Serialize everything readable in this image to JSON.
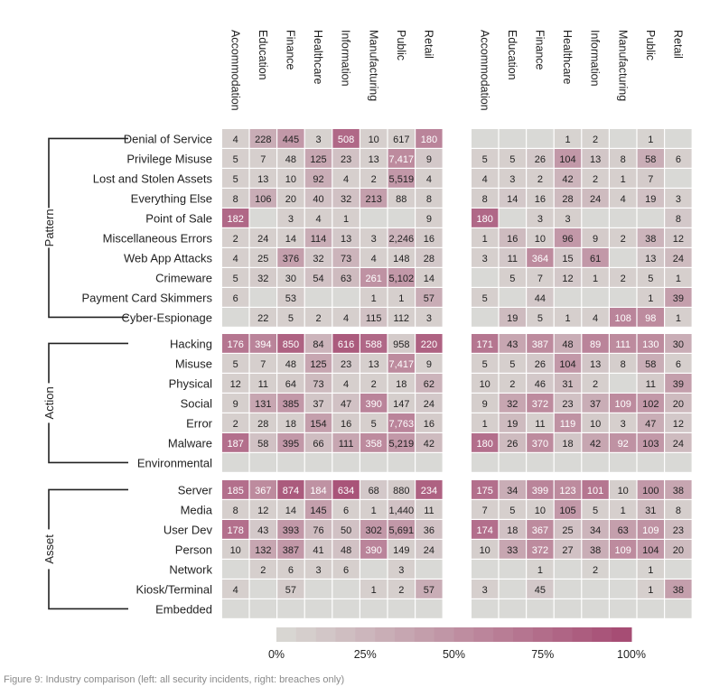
{
  "caption": "Figure 9: Industry comparison (left: all security incidents, right: breaches only)",
  "chart_data": {
    "type": "heatmap",
    "industries": [
      "Accommodation",
      "Education",
      "Finance",
      "Healthcare",
      "Information",
      "Manufacturing",
      "Public",
      "Retail"
    ],
    "groups": [
      {
        "name": "Pattern",
        "rows": [
          "Denial of Service",
          "Privilege Misuse",
          "Lost and Stolen Assets",
          "Everything Else",
          "Point of Sale",
          "Miscellaneous Errors",
          "Web App Attacks",
          "Crimeware",
          "Payment Card Skimmers",
          "Cyber-Espionage"
        ]
      },
      {
        "name": "Action",
        "rows": [
          "Hacking",
          "Misuse",
          "Physical",
          "Social",
          "Error",
          "Malware",
          "Environmental"
        ]
      },
      {
        "name": "Asset",
        "rows": [
          "Server",
          "Media",
          "User Dev",
          "Person",
          "Network",
          "Kiosk/Terminal",
          "Embedded"
        ]
      }
    ],
    "panels": [
      {
        "name": "all security incidents",
        "values": [
          [
            "4",
            "228",
            "445",
            "3",
            "508",
            "10",
            "617",
            "180"
          ],
          [
            "5",
            "7",
            "48",
            "125",
            "23",
            "13",
            "7,417",
            "9"
          ],
          [
            "5",
            "13",
            "10",
            "92",
            "4",
            "2",
            "5,519",
            "4"
          ],
          [
            "8",
            "106",
            "20",
            "40",
            "32",
            "213",
            "88",
            "8"
          ],
          [
            "182",
            "",
            "3",
            "4",
            "1",
            "",
            "",
            "9"
          ],
          [
            "2",
            "24",
            "14",
            "114",
            "13",
            "3",
            "2,246",
            "16"
          ],
          [
            "4",
            "25",
            "376",
            "32",
            "73",
            "4",
            "148",
            "28"
          ],
          [
            "5",
            "32",
            "30",
            "54",
            "63",
            "261",
            "5,102",
            "14"
          ],
          [
            "6",
            "",
            "53",
            "",
            "",
            "1",
            "1",
            "57"
          ],
          [
            "",
            "22",
            "5",
            "2",
            "4",
            "115",
            "112",
            "3"
          ],
          [
            "176",
            "394",
            "850",
            "84",
            "616",
            "588",
            "958",
            "220"
          ],
          [
            "5",
            "7",
            "48",
            "125",
            "23",
            "13",
            "7,417",
            "9"
          ],
          [
            "12",
            "11",
            "64",
            "73",
            "4",
            "2",
            "18",
            "62"
          ],
          [
            "9",
            "131",
            "385",
            "37",
            "47",
            "390",
            "147",
            "24"
          ],
          [
            "2",
            "28",
            "18",
            "154",
            "16",
            "5",
            "7,763",
            "16"
          ],
          [
            "187",
            "58",
            "395",
            "66",
            "111",
            "358",
            "5,219",
            "42"
          ],
          [
            "",
            "",
            "",
            "",
            "",
            "",
            "",
            ""
          ],
          [
            "185",
            "367",
            "874",
            "184",
            "634",
            "68",
            "880",
            "234"
          ],
          [
            "8",
            "12",
            "14",
            "145",
            "6",
            "1",
            "1,440",
            "11"
          ],
          [
            "178",
            "43",
            "393",
            "76",
            "50",
            "302",
            "5,691",
            "36"
          ],
          [
            "10",
            "132",
            "387",
            "41",
            "48",
            "390",
            "149",
            "24"
          ],
          [
            "",
            "2",
            "6",
            "3",
            "6",
            "",
            "3",
            ""
          ],
          [
            "4",
            "",
            "57",
            "",
            "",
            "1",
            "2",
            "57"
          ],
          [
            "",
            "",
            "",
            "",
            "",
            "",
            "",
            ""
          ]
        ],
        "fill": [
          [
            0.05,
            0.3,
            0.45,
            0.03,
            0.8,
            0.05,
            0.05,
            0.6
          ],
          [
            0.05,
            0.05,
            0.06,
            0.35,
            0.15,
            0.05,
            0.55,
            0.1
          ],
          [
            0.05,
            0.05,
            0.05,
            0.3,
            0.05,
            0.05,
            0.45,
            0.05
          ],
          [
            0.06,
            0.3,
            0.06,
            0.15,
            0.15,
            0.4,
            0.05,
            0.06
          ],
          [
            0.8,
            0,
            0.05,
            0.05,
            0.05,
            0,
            0,
            0.05
          ],
          [
            0.05,
            0.05,
            0.05,
            0.3,
            0.1,
            0.05,
            0.25,
            0.08
          ],
          [
            0.05,
            0.05,
            0.4,
            0.1,
            0.25,
            0.05,
            0.05,
            0.1
          ],
          [
            0.05,
            0.08,
            0.05,
            0.15,
            0.2,
            0.5,
            0.45,
            0.05
          ],
          [
            0.05,
            0,
            0.07,
            0,
            0,
            0.05,
            0.05,
            0.3
          ],
          [
            0,
            0.05,
            0.05,
            0.05,
            0.05,
            0.15,
            0.05,
            0.05
          ],
          [
            0.7,
            0.6,
            0.85,
            0.25,
            0.9,
            0.8,
            0.08,
            0.85
          ],
          [
            0.05,
            0.05,
            0.05,
            0.35,
            0.1,
            0.05,
            0.55,
            0.05
          ],
          [
            0.05,
            0.05,
            0.08,
            0.2,
            0.05,
            0.05,
            0.05,
            0.25
          ],
          [
            0.05,
            0.35,
            0.45,
            0.12,
            0.15,
            0.6,
            0.06,
            0.1
          ],
          [
            0.05,
            0.05,
            0.05,
            0.4,
            0.08,
            0.05,
            0.6,
            0.08
          ],
          [
            0.75,
            0.15,
            0.45,
            0.18,
            0.35,
            0.55,
            0.45,
            0.2
          ],
          [
            0,
            0,
            0,
            0,
            0,
            0,
            0,
            0
          ],
          [
            0.75,
            0.55,
            0.9,
            0.5,
            0.95,
            0.1,
            0.08,
            0.85
          ],
          [
            0.05,
            0.05,
            0.05,
            0.4,
            0.05,
            0.05,
            0.15,
            0.05
          ],
          [
            0.75,
            0.1,
            0.45,
            0.2,
            0.15,
            0.45,
            0.45,
            0.15
          ],
          [
            0.05,
            0.35,
            0.45,
            0.12,
            0.15,
            0.6,
            0.06,
            0.1
          ],
          [
            0,
            0.05,
            0.05,
            0.05,
            0.05,
            0,
            0.05,
            0
          ],
          [
            0.05,
            0,
            0.08,
            0,
            0,
            0.05,
            0.05,
            0.3
          ],
          [
            0,
            0,
            0,
            0,
            0,
            0,
            0,
            0
          ]
        ]
      },
      {
        "name": "breaches only",
        "values": [
          [
            "",
            "",
            "",
            "1",
            "2",
            "",
            "1",
            ""
          ],
          [
            "5",
            "5",
            "26",
            "104",
            "13",
            "8",
            "58",
            "6"
          ],
          [
            "4",
            "3",
            "2",
            "42",
            "2",
            "1",
            "7",
            ""
          ],
          [
            "8",
            "14",
            "16",
            "28",
            "24",
            "4",
            "19",
            "3"
          ],
          [
            "180",
            "",
            "3",
            "3",
            "",
            "",
            "",
            "8"
          ],
          [
            "1",
            "16",
            "10",
            "96",
            "9",
            "2",
            "38",
            "12"
          ],
          [
            "3",
            "11",
            "364",
            "15",
            "61",
            "",
            "13",
            "24"
          ],
          [
            "",
            "5",
            "7",
            "12",
            "1",
            "2",
            "5",
            "1"
          ],
          [
            "5",
            "",
            "44",
            "",
            "",
            "",
            "1",
            "39"
          ],
          [
            "",
            "19",
            "5",
            "1",
            "4",
            "108",
            "98",
            "1"
          ],
          [
            "171",
            "43",
            "387",
            "48",
            "89",
            "111",
            "130",
            "30"
          ],
          [
            "5",
            "5",
            "26",
            "104",
            "13",
            "8",
            "58",
            "6"
          ],
          [
            "10",
            "2",
            "46",
            "31",
            "2",
            "",
            "11",
            "39"
          ],
          [
            "9",
            "32",
            "372",
            "23",
            "37",
            "109",
            "102",
            "20"
          ],
          [
            "1",
            "19",
            "11",
            "119",
            "10",
            "3",
            "47",
            "12"
          ],
          [
            "180",
            "26",
            "370",
            "18",
            "42",
            "92",
            "103",
            "24"
          ],
          [
            "",
            "",
            "",
            "",
            "",
            "",
            "",
            ""
          ],
          [
            "175",
            "34",
            "399",
            "123",
            "101",
            "10",
            "100",
            "38"
          ],
          [
            "7",
            "5",
            "10",
            "105",
            "5",
            "1",
            "31",
            "8"
          ],
          [
            "174",
            "18",
            "367",
            "25",
            "34",
            "63",
            "109",
            "23"
          ],
          [
            "10",
            "33",
            "372",
            "27",
            "38",
            "109",
            "104",
            "20"
          ],
          [
            "",
            "",
            "1",
            "",
            "2",
            "",
            "1",
            ""
          ],
          [
            "3",
            "",
            "45",
            "",
            "",
            "",
            "1",
            "38"
          ],
          [
            "",
            "",
            "",
            "",
            "",
            "",
            "",
            ""
          ]
        ],
        "fill": [
          [
            0,
            0,
            0,
            0.02,
            0.02,
            0,
            0.02,
            0
          ],
          [
            0.05,
            0.05,
            0.1,
            0.45,
            0.12,
            0.06,
            0.3,
            0.05
          ],
          [
            0.05,
            0.05,
            0.05,
            0.25,
            0.05,
            0.05,
            0.08,
            0
          ],
          [
            0.06,
            0.1,
            0.06,
            0.2,
            0.2,
            0.05,
            0.15,
            0.05
          ],
          [
            0.8,
            0,
            0.05,
            0.05,
            0,
            0,
            0,
            0.1
          ],
          [
            0.05,
            0.2,
            0.05,
            0.45,
            0.08,
            0.05,
            0.25,
            0.1
          ],
          [
            0.05,
            0.1,
            0.55,
            0.1,
            0.45,
            0,
            0.1,
            0.2
          ],
          [
            0,
            0.05,
            0.05,
            0.1,
            0.05,
            0.05,
            0.05,
            0.05
          ],
          [
            0.05,
            0,
            0.1,
            0,
            0,
            0,
            0.05,
            0.4
          ],
          [
            0,
            0.2,
            0.05,
            0.05,
            0.05,
            0.6,
            0.55,
            0.05
          ],
          [
            0.7,
            0.35,
            0.55,
            0.3,
            0.6,
            0.55,
            0.55,
            0.3
          ],
          [
            0.05,
            0.05,
            0.1,
            0.45,
            0.12,
            0.06,
            0.3,
            0.05
          ],
          [
            0.05,
            0.05,
            0.1,
            0.2,
            0.05,
            0,
            0.08,
            0.4
          ],
          [
            0.06,
            0.35,
            0.55,
            0.15,
            0.3,
            0.55,
            0.45,
            0.2
          ],
          [
            0.05,
            0.2,
            0.05,
            0.5,
            0.08,
            0.05,
            0.3,
            0.1
          ],
          [
            0.75,
            0.2,
            0.55,
            0.12,
            0.35,
            0.5,
            0.45,
            0.2
          ],
          [
            0,
            0,
            0,
            0,
            0,
            0,
            0,
            0
          ],
          [
            0.75,
            0.3,
            0.6,
            0.55,
            0.7,
            0.06,
            0.45,
            0.35
          ],
          [
            0.05,
            0.05,
            0.05,
            0.45,
            0.05,
            0.05,
            0.2,
            0.06
          ],
          [
            0.75,
            0.15,
            0.55,
            0.15,
            0.25,
            0.4,
            0.5,
            0.2
          ],
          [
            0.06,
            0.35,
            0.55,
            0.15,
            0.3,
            0.55,
            0.45,
            0.2
          ],
          [
            0,
            0,
            0.02,
            0,
            0.02,
            0,
            0.02,
            0
          ],
          [
            0.05,
            0,
            0.1,
            0,
            0,
            0,
            0.05,
            0.4
          ],
          [
            0,
            0,
            0,
            0,
            0,
            0,
            0,
            0
          ]
        ]
      }
    ],
    "legend": {
      "ticks": [
        "0%",
        "25%",
        "50%",
        "75%",
        "100%"
      ],
      "steps": 18
    },
    "colors": {
      "empty": "#d9d9d6",
      "low": "#d8d6d2",
      "high": "#a64d74",
      "text_dark": "#222222",
      "text_light": "#ffffff",
      "bracket": "#222222"
    }
  }
}
